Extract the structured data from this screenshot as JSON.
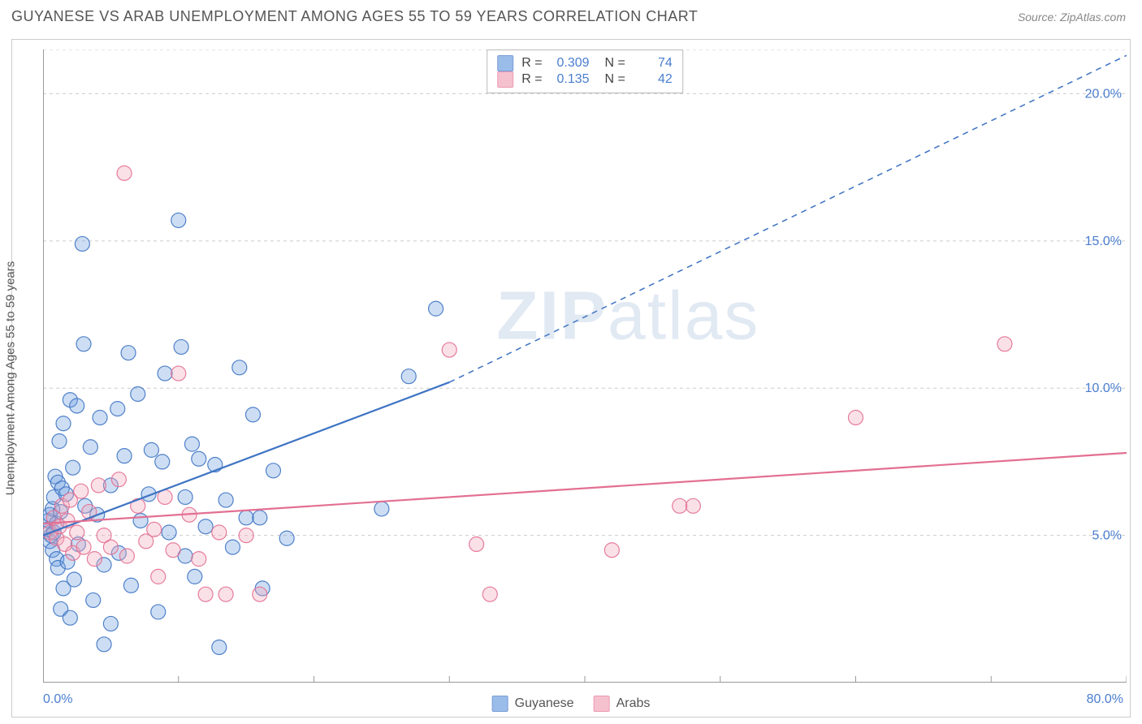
{
  "title": "GUYANESE VS ARAB UNEMPLOYMENT AMONG AGES 55 TO 59 YEARS CORRELATION CHART",
  "source": "Source: ZipAtlas.com",
  "ylabel": "Unemployment Among Ages 55 to 59 years",
  "watermark_a": "ZIP",
  "watermark_b": "atlas",
  "chart": {
    "type": "scatter",
    "xlim": [
      0,
      80
    ],
    "ylim": [
      0,
      21.5
    ],
    "x_origin_label": "0.0%",
    "x_end_label": "80.0%",
    "xtick_positions": [
      0,
      10,
      20,
      30,
      40,
      50,
      60,
      70,
      80
    ],
    "ygrid": [
      {
        "v": 5.0,
        "label": "5.0%"
      },
      {
        "v": 10.0,
        "label": "10.0%"
      },
      {
        "v": 15.0,
        "label": "15.0%"
      },
      {
        "v": 20.0,
        "label": "20.0%"
      }
    ],
    "background_color": "#ffffff",
    "grid_color": "#cccccc",
    "axis_color": "#999999",
    "label_color": "#4a7ecf",
    "marker_radius": 9,
    "marker_fill_opacity": 0.35,
    "marker_stroke_opacity": 0.9,
    "marker_stroke_width": 1.2,
    "series": [
      {
        "key": "guyanese",
        "name": "Guyanese",
        "color": "#6fa0e0",
        "stroke": "#3f74c4",
        "R": "0.309",
        "N": "74",
        "trend": {
          "x0": 0,
          "y0": 5.0,
          "x1_solid": 30,
          "y1_solid": 10.2,
          "x1_dash": 80,
          "y1_dash": 21.3,
          "width": 2.2
        },
        "points": [
          [
            0.3,
            5.2
          ],
          [
            0.4,
            5.5
          ],
          [
            0.5,
            4.8
          ],
          [
            0.5,
            5.7
          ],
          [
            0.6,
            5.0
          ],
          [
            0.7,
            5.9
          ],
          [
            0.7,
            4.5
          ],
          [
            0.8,
            6.3
          ],
          [
            0.8,
            5.1
          ],
          [
            0.9,
            7.0
          ],
          [
            1.0,
            5.4
          ],
          [
            1.0,
            4.2
          ],
          [
            1.1,
            6.8
          ],
          [
            1.1,
            3.9
          ],
          [
            1.2,
            8.2
          ],
          [
            1.3,
            5.8
          ],
          [
            1.3,
            2.5
          ],
          [
            1.4,
            6.6
          ],
          [
            1.5,
            8.8
          ],
          [
            1.5,
            3.2
          ],
          [
            1.7,
            6.4
          ],
          [
            1.8,
            4.1
          ],
          [
            2.0,
            9.6
          ],
          [
            2.0,
            2.2
          ],
          [
            2.2,
            7.3
          ],
          [
            2.3,
            3.5
          ],
          [
            2.5,
            9.4
          ],
          [
            2.6,
            4.7
          ],
          [
            2.9,
            14.9
          ],
          [
            3.0,
            11.5
          ],
          [
            3.1,
            6.0
          ],
          [
            3.5,
            8.0
          ],
          [
            3.7,
            2.8
          ],
          [
            4.0,
            5.7
          ],
          [
            4.2,
            9.0
          ],
          [
            4.5,
            4.0
          ],
          [
            4.5,
            1.3
          ],
          [
            5.0,
            6.7
          ],
          [
            5.0,
            2.0
          ],
          [
            5.5,
            9.3
          ],
          [
            5.6,
            4.4
          ],
          [
            6.0,
            7.7
          ],
          [
            6.3,
            11.2
          ],
          [
            6.5,
            3.3
          ],
          [
            7.0,
            9.8
          ],
          [
            7.2,
            5.5
          ],
          [
            7.8,
            6.4
          ],
          [
            8.0,
            7.9
          ],
          [
            8.5,
            2.4
          ],
          [
            8.8,
            7.5
          ],
          [
            9.0,
            10.5
          ],
          [
            9.3,
            5.1
          ],
          [
            10.0,
            15.7
          ],
          [
            10.2,
            11.4
          ],
          [
            10.5,
            6.3
          ],
          [
            10.5,
            4.3
          ],
          [
            11.0,
            8.1
          ],
          [
            11.2,
            3.6
          ],
          [
            11.5,
            7.6
          ],
          [
            12.0,
            5.3
          ],
          [
            12.7,
            7.4
          ],
          [
            13.0,
            1.2
          ],
          [
            13.5,
            6.2
          ],
          [
            14.0,
            4.6
          ],
          [
            14.5,
            10.7
          ],
          [
            15.0,
            5.6
          ],
          [
            15.5,
            9.1
          ],
          [
            16.0,
            5.6
          ],
          [
            16.2,
            3.2
          ],
          [
            17.0,
            7.2
          ],
          [
            18.0,
            4.9
          ],
          [
            25.0,
            5.9
          ],
          [
            27.0,
            10.4
          ],
          [
            29.0,
            12.7
          ]
        ]
      },
      {
        "key": "arabs",
        "name": "Arabs",
        "color": "#f2a8bb",
        "stroke": "#e36f92",
        "R": "0.135",
        "N": "42",
        "trend": {
          "x0": 0,
          "y0": 5.4,
          "x1_solid": 80,
          "y1_solid": 7.8,
          "width": 2.2
        },
        "points": [
          [
            0.5,
            5.1
          ],
          [
            0.8,
            5.6
          ],
          [
            1.0,
            4.9
          ],
          [
            1.2,
            5.3
          ],
          [
            1.4,
            6.0
          ],
          [
            1.6,
            4.7
          ],
          [
            1.8,
            5.5
          ],
          [
            2.0,
            6.2
          ],
          [
            2.2,
            4.4
          ],
          [
            2.5,
            5.1
          ],
          [
            2.8,
            6.5
          ],
          [
            3.0,
            4.6
          ],
          [
            3.4,
            5.8
          ],
          [
            3.8,
            4.2
          ],
          [
            4.1,
            6.7
          ],
          [
            4.5,
            5.0
          ],
          [
            5.0,
            4.6
          ],
          [
            5.6,
            6.9
          ],
          [
            6.0,
            17.3
          ],
          [
            6.2,
            4.3
          ],
          [
            7.0,
            6.0
          ],
          [
            7.6,
            4.8
          ],
          [
            8.2,
            5.2
          ],
          [
            8.5,
            3.6
          ],
          [
            9.0,
            6.3
          ],
          [
            9.6,
            4.5
          ],
          [
            10.0,
            10.5
          ],
          [
            10.8,
            5.7
          ],
          [
            11.5,
            4.2
          ],
          [
            12.0,
            3.0
          ],
          [
            13.0,
            5.1
          ],
          [
            13.5,
            3.0
          ],
          [
            15.0,
            5.0
          ],
          [
            16.0,
            3.0
          ],
          [
            30.0,
            11.3
          ],
          [
            32.0,
            4.7
          ],
          [
            33.0,
            3.0
          ],
          [
            42.0,
            4.5
          ],
          [
            47.0,
            6.0
          ],
          [
            48.0,
            6.0
          ],
          [
            60.0,
            9.0
          ],
          [
            71.0,
            11.5
          ]
        ]
      }
    ]
  },
  "legend": {
    "series1": "Guyanese",
    "series2": "Arabs"
  }
}
